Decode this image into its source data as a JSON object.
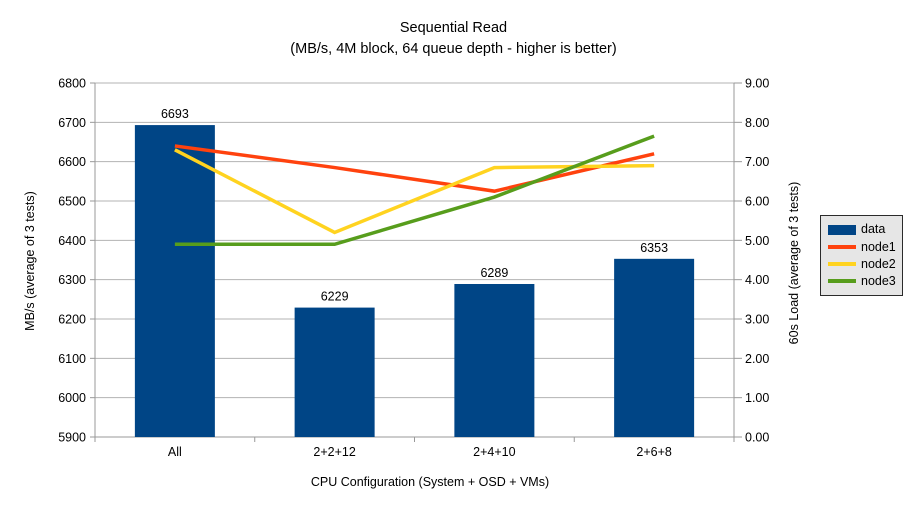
{
  "chart_data": {
    "type": "bar+line combo",
    "title": "Sequential Read",
    "subtitle": "(MB/s, 4M block, 64 queue depth - higher is better)",
    "xlabel": "CPU Configuration (System + OSD + VMs)",
    "ylabel_left": "MB/s (average of 3 tests)",
    "ylabel_right": "60s Load (average of 3 tests)",
    "categories": [
      "All",
      "2+2+12",
      "2+4+10",
      "2+6+8"
    ],
    "series": [
      {
        "name": "data",
        "type": "bar",
        "axis": "left",
        "color": "#004586",
        "values": [
          6693,
          6229,
          6289,
          6353
        ],
        "data_labels": [
          "6693",
          "6229",
          "6289",
          "6353"
        ]
      },
      {
        "name": "node1",
        "type": "line",
        "axis": "right",
        "color": "#ff420e",
        "values": [
          7.4,
          6.85,
          6.25,
          7.2
        ]
      },
      {
        "name": "node2",
        "type": "line",
        "axis": "right",
        "color": "#ffd320",
        "values": [
          7.3,
          5.2,
          6.85,
          6.9
        ]
      },
      {
        "name": "node3",
        "type": "line",
        "axis": "right",
        "color": "#579d1c",
        "values": [
          4.9,
          4.9,
          6.1,
          7.65
        ]
      }
    ],
    "ylim_left": [
      5900,
      6800
    ],
    "ylim_right": [
      0,
      9
    ],
    "left_ticks": [
      "6800",
      "6700",
      "6600",
      "6500",
      "6400",
      "6300",
      "6200",
      "6100",
      "6000",
      "5900"
    ],
    "right_ticks": [
      "9.00",
      "8.00",
      "7.00",
      "6.00",
      "5.00",
      "4.00",
      "3.00",
      "2.00",
      "1.00",
      "0.00"
    ],
    "grid": "horizontal",
    "legend_position": "right"
  },
  "colors": {
    "background": "#ffffff",
    "grid": "#b3b3b3",
    "axis": "#999999",
    "text": "#000000",
    "legend_bg": "#e6e6e6",
    "legend_border": "#2b2b2b"
  }
}
